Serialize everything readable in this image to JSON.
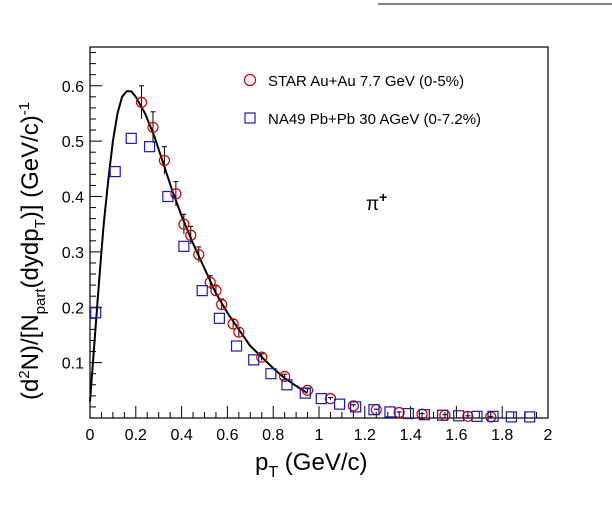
{
  "chart_data": {
    "type": "scatter",
    "xlabel": "p_T (GeV/c)",
    "ylabel": "(d²N)/[N_part(dydp_T)] (GeV/c)⁻¹",
    "xlim": [
      0,
      2
    ],
    "ylim": [
      0,
      0.67
    ],
    "grid": false,
    "legend_placement": "top-right",
    "annotation": "π⁺",
    "x_ticks": [
      "0",
      "0.2",
      "0.4",
      "0.6",
      "0.8",
      "1",
      "1.2",
      "1.4",
      "1.6",
      "1.8",
      "2"
    ],
    "x_tick_values": [
      0,
      0.2,
      0.4,
      0.6,
      0.8,
      1.0,
      1.2,
      1.4,
      1.6,
      1.8,
      2.0
    ],
    "y_ticks": [
      "0.1",
      "0.2",
      "0.3",
      "0.4",
      "0.5",
      "0.6"
    ],
    "y_tick_values": [
      0.1,
      0.2,
      0.3,
      0.4,
      0.5,
      0.6
    ],
    "series": [
      {
        "name": "STAR Au+Au 7.7 GeV (0-5%)",
        "marker": "open-circle",
        "color": "#cc0000",
        "points": [
          {
            "x": 0.225,
            "y": 0.57,
            "err": 0.03
          },
          {
            "x": 0.275,
            "y": 0.525,
            "err": 0.028
          },
          {
            "x": 0.325,
            "y": 0.465,
            "err": 0.025
          },
          {
            "x": 0.375,
            "y": 0.405,
            "err": 0.022
          },
          {
            "x": 0.41,
            "y": 0.35,
            "err": 0.018
          },
          {
            "x": 0.44,
            "y": 0.33,
            "err": 0.016
          },
          {
            "x": 0.475,
            "y": 0.295,
            "err": 0.014
          },
          {
            "x": 0.525,
            "y": 0.245,
            "err": 0.012
          },
          {
            "x": 0.55,
            "y": 0.23,
            "err": 0.01
          },
          {
            "x": 0.575,
            "y": 0.205,
            "err": 0.01
          },
          {
            "x": 0.625,
            "y": 0.17,
            "err": 0.008
          },
          {
            "x": 0.65,
            "y": 0.155,
            "err": 0.008
          },
          {
            "x": 0.75,
            "y": 0.11,
            "err": 0.006
          },
          {
            "x": 0.85,
            "y": 0.075,
            "err": 0.004
          },
          {
            "x": 0.95,
            "y": 0.05,
            "err": 0.003
          },
          {
            "x": 1.05,
            "y": 0.035,
            "err": 0.002
          },
          {
            "x": 1.15,
            "y": 0.022,
            "err": 0.002
          },
          {
            "x": 1.25,
            "y": 0.015,
            "err": 0.001
          },
          {
            "x": 1.35,
            "y": 0.01,
            "err": 0.001
          },
          {
            "x": 1.45,
            "y": 0.007,
            "err": 0.001
          },
          {
            "x": 1.55,
            "y": 0.005,
            "err": 0.001
          },
          {
            "x": 1.65,
            "y": 0.003,
            "err": 0.001
          },
          {
            "x": 1.75,
            "y": 0.002,
            "err": 0.001
          }
        ]
      },
      {
        "name": "NA49 Pb+Pb 30 AGeV (0-7.2%)",
        "marker": "open-square",
        "color": "#1a1aaa",
        "points": [
          {
            "x": 0.025,
            "y": 0.19
          },
          {
            "x": 0.11,
            "y": 0.445
          },
          {
            "x": 0.18,
            "y": 0.505
          },
          {
            "x": 0.26,
            "y": 0.49
          },
          {
            "x": 0.34,
            "y": 0.4
          },
          {
            "x": 0.41,
            "y": 0.31
          },
          {
            "x": 0.49,
            "y": 0.23
          },
          {
            "x": 0.565,
            "y": 0.18
          },
          {
            "x": 0.64,
            "y": 0.13
          },
          {
            "x": 0.715,
            "y": 0.105
          },
          {
            "x": 0.79,
            "y": 0.08
          },
          {
            "x": 0.86,
            "y": 0.06
          },
          {
            "x": 0.94,
            "y": 0.045
          },
          {
            "x": 1.01,
            "y": 0.035
          },
          {
            "x": 1.09,
            "y": 0.025
          },
          {
            "x": 1.16,
            "y": 0.02
          },
          {
            "x": 1.24,
            "y": 0.015
          },
          {
            "x": 1.31,
            "y": 0.011
          },
          {
            "x": 1.39,
            "y": 0.008
          },
          {
            "x": 1.46,
            "y": 0.006
          },
          {
            "x": 1.54,
            "y": 0.005
          },
          {
            "x": 1.61,
            "y": 0.004
          },
          {
            "x": 1.69,
            "y": 0.003
          },
          {
            "x": 1.76,
            "y": 0.003
          },
          {
            "x": 1.84,
            "y": 0.002
          },
          {
            "x": 1.92,
            "y": 0.002
          }
        ]
      }
    ],
    "fit_curve": {
      "color": "#000000",
      "points": [
        {
          "x": 0.0,
          "y": 0.03
        },
        {
          "x": 0.02,
          "y": 0.14
        },
        {
          "x": 0.04,
          "y": 0.25
        },
        {
          "x": 0.06,
          "y": 0.35
        },
        {
          "x": 0.08,
          "y": 0.43
        },
        {
          "x": 0.1,
          "y": 0.5
        },
        {
          "x": 0.12,
          "y": 0.55
        },
        {
          "x": 0.14,
          "y": 0.58
        },
        {
          "x": 0.16,
          "y": 0.59
        },
        {
          "x": 0.18,
          "y": 0.59
        },
        {
          "x": 0.2,
          "y": 0.58
        },
        {
          "x": 0.24,
          "y": 0.55
        },
        {
          "x": 0.28,
          "y": 0.51
        },
        {
          "x": 0.32,
          "y": 0.46
        },
        {
          "x": 0.36,
          "y": 0.41
        },
        {
          "x": 0.4,
          "y": 0.365
        },
        {
          "x": 0.45,
          "y": 0.315
        },
        {
          "x": 0.5,
          "y": 0.27
        },
        {
          "x": 0.55,
          "y": 0.225
        },
        {
          "x": 0.6,
          "y": 0.19
        },
        {
          "x": 0.65,
          "y": 0.16
        },
        {
          "x": 0.7,
          "y": 0.13
        },
        {
          "x": 0.75,
          "y": 0.11
        },
        {
          "x": 0.8,
          "y": 0.09
        },
        {
          "x": 0.85,
          "y": 0.072
        },
        {
          "x": 0.9,
          "y": 0.058
        },
        {
          "x": 0.95,
          "y": 0.045
        }
      ]
    }
  }
}
